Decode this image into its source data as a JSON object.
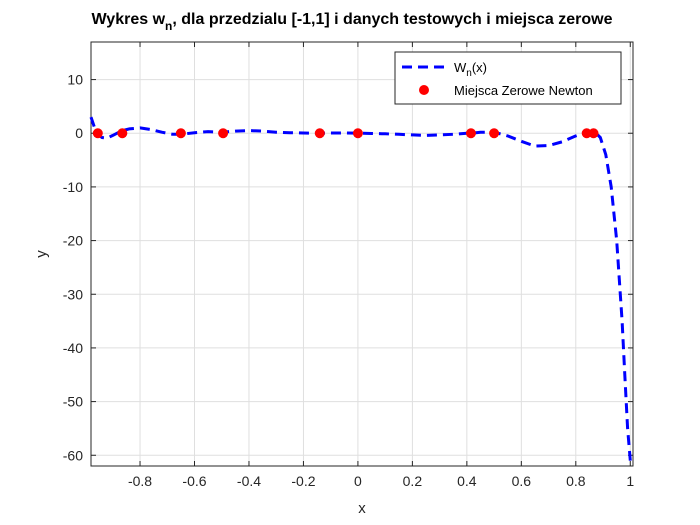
{
  "chart_data": {
    "type": "line",
    "title": {
      "prefix": "Wykres w",
      "subscript": "n",
      "suffix": ", dla przedzialu [-1,1] i danych testowych i miejsca zerowe"
    },
    "xlabel": "x",
    "ylabel": "y",
    "xlim": [
      -0.98,
      1.01
    ],
    "ylim": [
      -62,
      17
    ],
    "grid": true,
    "legend_position": "top-right",
    "x_ticks": [
      -0.8,
      -0.6,
      -0.4,
      -0.2,
      0,
      0.2,
      0.4,
      0.6,
      0.8,
      1
    ],
    "x_tick_labels": [
      "-0.8",
      "-0.6",
      "-0.4",
      "-0.2",
      "0",
      "0.2",
      "0.4",
      "0.6",
      "0.8",
      "1"
    ],
    "y_ticks": [
      -60,
      -50,
      -40,
      -30,
      -20,
      -10,
      0,
      10
    ],
    "y_tick_labels": [
      "-60",
      "-50",
      "-40",
      "-30",
      "-20",
      "-10",
      "0",
      "10"
    ],
    "series": [
      {
        "name_prefix": "W",
        "name_subscript": "n",
        "name_suffix": "(x)",
        "style": "dashed",
        "color": "#0000ff",
        "x": [
          -0.98,
          -0.96,
          -0.94,
          -0.92,
          -0.9,
          -0.87,
          -0.84,
          -0.8,
          -0.76,
          -0.72,
          -0.68,
          -0.65,
          -0.6,
          -0.55,
          -0.5,
          -0.45,
          -0.4,
          -0.35,
          -0.3,
          -0.25,
          -0.2,
          -0.15,
          -0.1,
          -0.05,
          0,
          0.05,
          0.1,
          0.15,
          0.2,
          0.25,
          0.3,
          0.35,
          0.4,
          0.42,
          0.45,
          0.5,
          0.55,
          0.6,
          0.65,
          0.7,
          0.75,
          0.8,
          0.83,
          0.85,
          0.87,
          0.89,
          0.91,
          0.93,
          0.95,
          0.97,
          0.98,
          0.99,
          1.0
        ],
        "y": [
          3,
          0,
          -0.8,
          -0.9,
          -0.4,
          0.4,
          0.8,
          1.0,
          0.7,
          0.2,
          -0.2,
          -0.2,
          0.1,
          0.3,
          0.2,
          0.4,
          0.5,
          0.4,
          0.2,
          0.1,
          0.05,
          0,
          0.05,
          0.05,
          0,
          -0.05,
          -0.1,
          -0.2,
          -0.3,
          -0.4,
          -0.3,
          -0.2,
          0,
          0,
          0.2,
          0.2,
          -0.5,
          -1.5,
          -2.4,
          -2.3,
          -1.6,
          -0.5,
          0,
          0.3,
          0.2,
          -0.8,
          -4,
          -10,
          -20,
          -35,
          -45,
          -55,
          -61
        ]
      },
      {
        "name": "Miejsca Zerowe Newton",
        "style": "markers",
        "color": "#ff0000",
        "x": [
          -0.955,
          -0.865,
          -0.65,
          -0.495,
          -0.14,
          0,
          0.415,
          0.5,
          0.84,
          0.865
        ],
        "y": [
          0,
          0,
          0,
          0,
          0,
          0,
          0,
          0,
          0,
          0
        ]
      }
    ]
  }
}
